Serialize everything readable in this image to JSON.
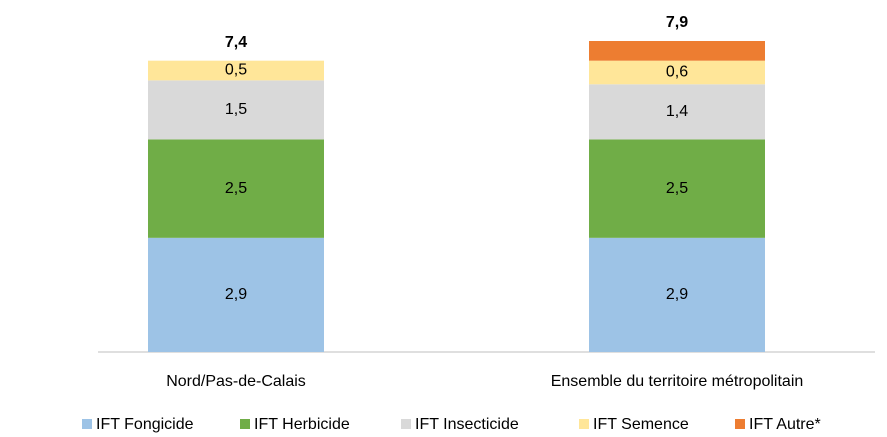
{
  "chart_data": {
    "type": "stacked_bar",
    "categories": [
      "Nord/Pas-de-Calais",
      "Ensemble du territoire métropolitain"
    ],
    "series": [
      {
        "name": "IFT Fongicide",
        "color": "#9dc3e6",
        "values": [
          2.9,
          2.9
        ],
        "value_labels": [
          "2,9",
          "2,9"
        ]
      },
      {
        "name": "IFT Herbicide",
        "color": "#70ad47",
        "values": [
          2.5,
          2.5
        ],
        "value_labels": [
          "2,5",
          "2,5"
        ]
      },
      {
        "name": "IFT Insecticide",
        "color": "#d9d9d9",
        "values": [
          1.5,
          1.4
        ],
        "value_labels": [
          "1,5",
          "1,4"
        ]
      },
      {
        "name": "IFT Semence",
        "color": "#ffe699",
        "values": [
          0.5,
          0.6
        ],
        "value_labels": [
          "0,5",
          "0,6"
        ]
      },
      {
        "name": "IFT Autre*",
        "color": "#ed7d31",
        "values": [
          null,
          0.5
        ]
      }
    ],
    "totals": [
      7.4,
      7.9
    ],
    "total_labels": [
      "7,4",
      "7,9"
    ],
    "legend": "bottom"
  }
}
